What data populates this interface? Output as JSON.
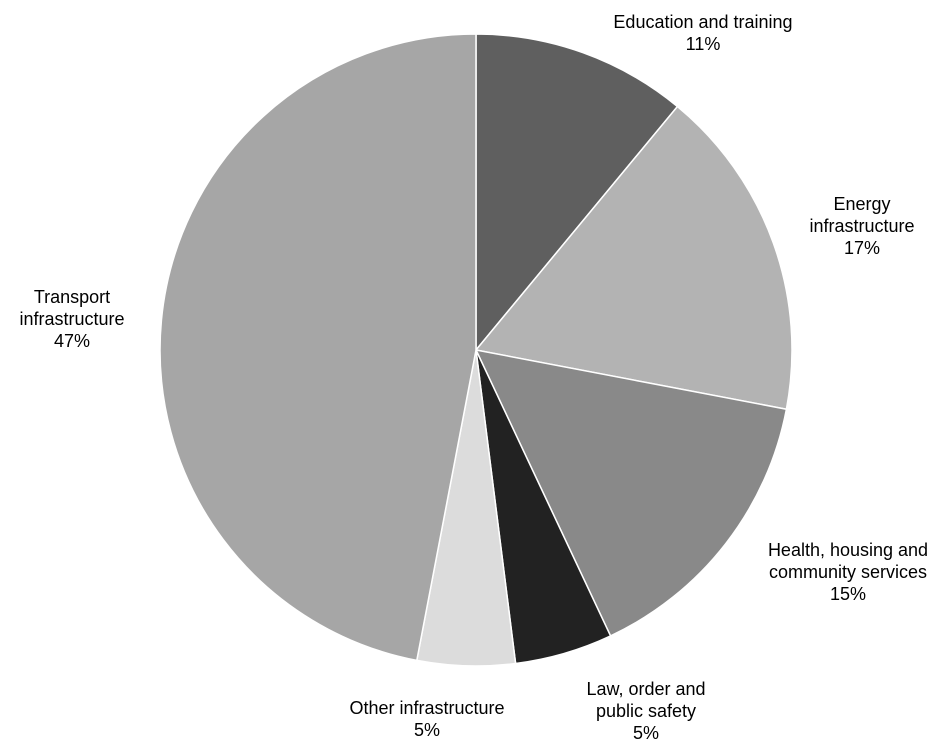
{
  "chart_data": {
    "type": "pie",
    "title": "",
    "slices": [
      {
        "label_lines": [
          "Education and training"
        ],
        "value_label": "11%",
        "value": 11,
        "color": "#5f5f5f"
      },
      {
        "label_lines": [
          "Energy",
          "infrastructure"
        ],
        "value_label": "17%",
        "value": 17,
        "color": "#b3b3b3"
      },
      {
        "label_lines": [
          "Health, housing and",
          "community services"
        ],
        "value_label": "15%",
        "value": 15,
        "color": "#898989"
      },
      {
        "label_lines": [
          "Law, order and",
          "public safety"
        ],
        "value_label": "5%",
        "value": 5,
        "color": "#222222"
      },
      {
        "label_lines": [
          "Other infrastructure"
        ],
        "value_label": "5%",
        "value": 5,
        "color": "#dcdcdc"
      },
      {
        "label_lines": [
          "Transport",
          "infrastructure"
        ],
        "value_label": "47%",
        "value": 47,
        "color": "#a6a6a6"
      }
    ]
  }
}
